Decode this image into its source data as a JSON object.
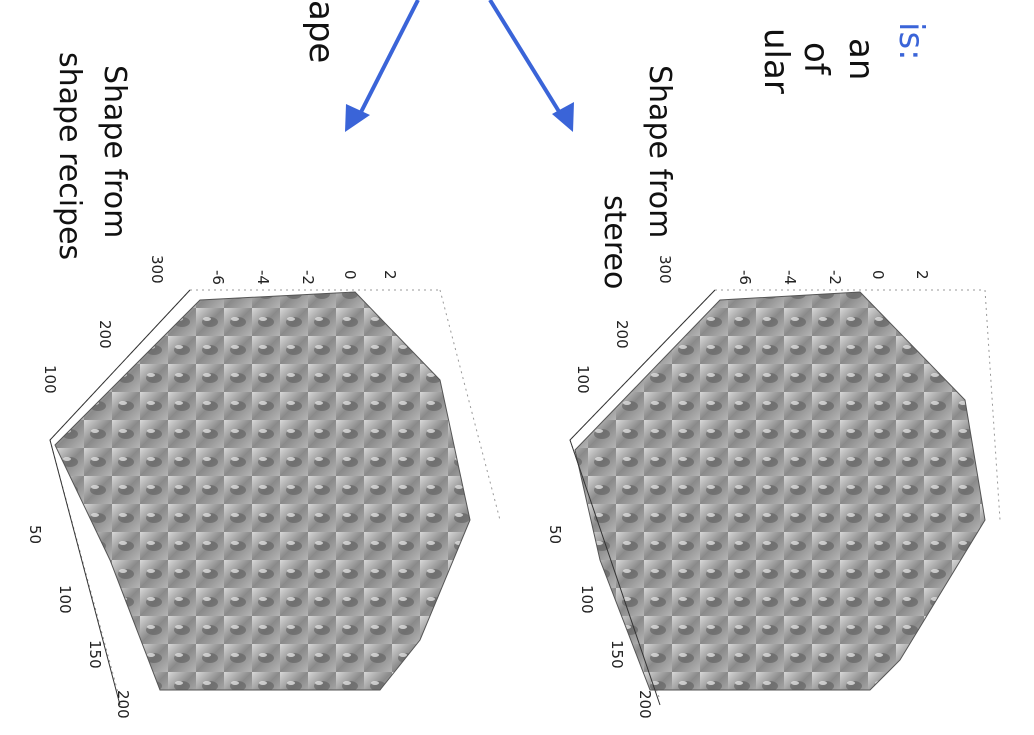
{
  "slide": {
    "fragments": [
      {
        "text": "is:",
        "color": "#3a64d8"
      },
      {
        "text": "an",
        "color": "#111111"
      },
      {
        "text": "of",
        "color": "#111111"
      },
      {
        "text": "ular",
        "color": "#111111"
      },
      {
        "text": "ape",
        "color": "#111111"
      }
    ],
    "plots": [
      {
        "label": [
          "Shape from",
          "stereo"
        ],
        "z_ticks": [
          2,
          0,
          -2,
          -4,
          -6
        ],
        "x_ticks": [
          300,
          200,
          100
        ],
        "y_ticks": [
          50,
          100,
          150,
          200
        ]
      },
      {
        "label": [
          "Shape from",
          "shape recipes"
        ],
        "z_ticks": [
          2,
          0,
          -2,
          -4,
          -6
        ],
        "x_ticks": [
          300,
          200,
          100
        ],
        "y_ticks": [
          50,
          100,
          150,
          200
        ]
      }
    ]
  }
}
